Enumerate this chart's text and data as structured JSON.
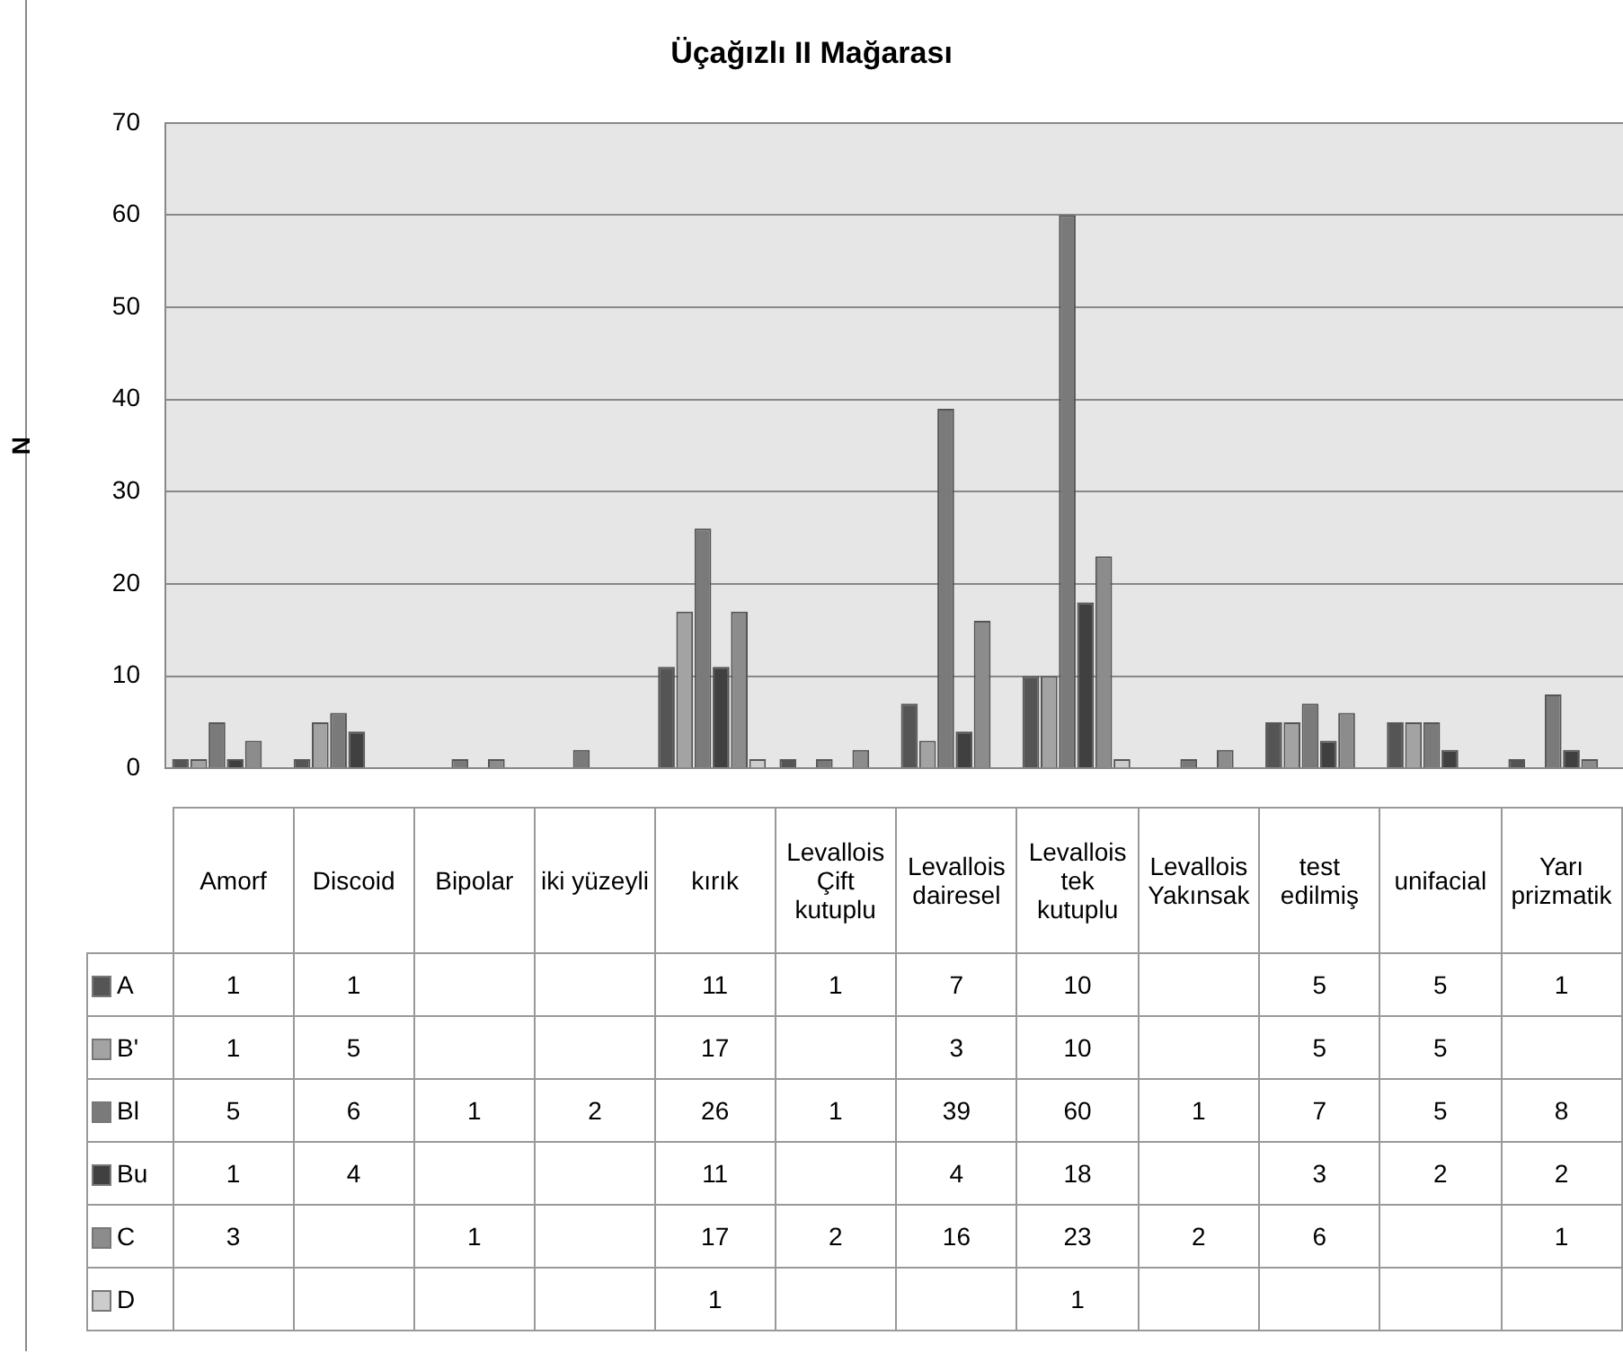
{
  "chart_data": {
    "type": "bar",
    "title": "Üçağızlı II Mağarası",
    "ylabel": "N",
    "categories": [
      "Amorf",
      "Discoid",
      "Bipolar",
      "iki yüzeyli",
      "kırık",
      "Levallois Çift kutuplu",
      "Levallois dairesel",
      "Levallois tek kutuplu",
      "Levallois Yakınsak",
      "test edilmiş",
      "unifacial",
      "Yarı prizmatik"
    ],
    "series": [
      {
        "name": "A",
        "color": "#555555",
        "values": [
          1,
          1,
          null,
          null,
          11,
          1,
          7,
          10,
          null,
          5,
          5,
          1
        ]
      },
      {
        "name": "B'",
        "color": "#a3a3a3",
        "values": [
          1,
          5,
          null,
          null,
          17,
          null,
          3,
          10,
          null,
          5,
          5,
          null
        ]
      },
      {
        "name": "Bl",
        "color": "#7a7a7a",
        "values": [
          5,
          6,
          1,
          2,
          26,
          1,
          39,
          60,
          1,
          7,
          5,
          8
        ]
      },
      {
        "name": "Bu",
        "color": "#404040",
        "values": [
          1,
          4,
          null,
          null,
          11,
          null,
          4,
          18,
          null,
          3,
          2,
          2
        ]
      },
      {
        "name": "C",
        "color": "#8c8c8c",
        "values": [
          3,
          null,
          1,
          null,
          17,
          2,
          16,
          23,
          2,
          6,
          null,
          1
        ]
      },
      {
        "name": "D",
        "color": "#cccccc",
        "values": [
          null,
          null,
          null,
          null,
          1,
          null,
          null,
          1,
          null,
          null,
          null,
          null
        ]
      }
    ],
    "ylim": [
      0,
      70
    ],
    "yticks": [
      0,
      10,
      20,
      30,
      40,
      50,
      60,
      70
    ],
    "grid": "y",
    "tick_labels": "y",
    "legend": "bottom",
    "data_labels": true
  }
}
